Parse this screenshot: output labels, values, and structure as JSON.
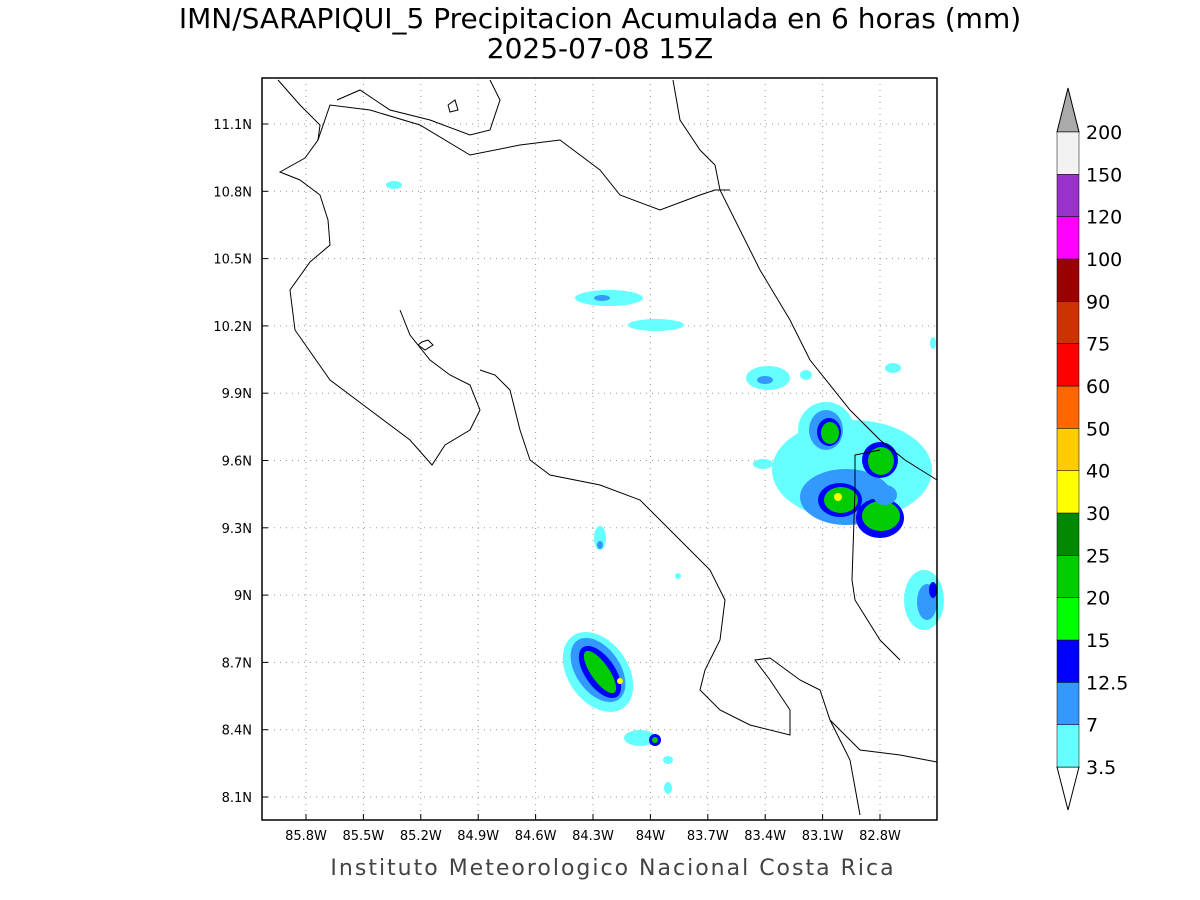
{
  "title": "IMN/SARAPIQUI_5 Precipitacion Acumulada en 6 horas (mm)",
  "subtitle": "2025-07-08 15Z",
  "map": {
    "lat_labels": [
      "11.1N",
      "10.8N",
      "10.5N",
      "10.2N",
      "9.9N",
      "9.6N",
      "9.3N",
      "9N",
      "8.7N",
      "8.4N",
      "8.1N"
    ],
    "lon_labels": [
      "85.8W",
      "85.5W",
      "85.2W",
      "84.9W",
      "84.6W",
      "84.3W",
      "84W",
      "83.7W",
      "83.4W",
      "83.1W",
      "82.8W"
    ]
  },
  "colorbar": {
    "levels": [
      3.5,
      7,
      12.5,
      15,
      20,
      25,
      30,
      40,
      50,
      60,
      75,
      90,
      100,
      120,
      150,
      200
    ],
    "colors": [
      "#66ffff",
      "#3399ff",
      "#0000ff",
      "#00ff00",
      "#00cc00",
      "#008800",
      "#ffff00",
      "#ffcc00",
      "#ff6600",
      "#ff0000",
      "#cc3300",
      "#990000",
      "#ff00ff",
      "#9933cc",
      "#f2f2f2"
    ],
    "under_color": "#ffffff",
    "over_color": "#aaaaaa"
  },
  "footer": "Instituto Meteorologico Nacional Costa Rica"
}
